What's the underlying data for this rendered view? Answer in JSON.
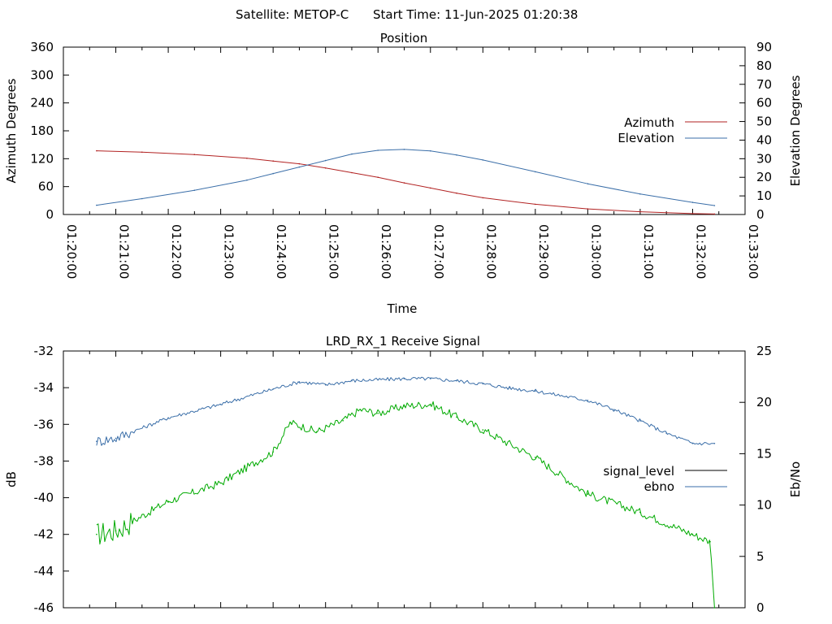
{
  "header": {
    "satellite": "Satellite: METOP-C",
    "start_time": "Start Time: 11-Jun-2025 01:20:38"
  },
  "colors": {
    "azimuth": "#b22222",
    "elevation": "#3a6ea8",
    "signal_level": "#00aa00",
    "ebno": "#3a6ea8"
  },
  "chart_data": [
    {
      "type": "line",
      "title": "Position",
      "xlabel": "Time",
      "ylabel": "Azimuth Degrees",
      "y2label": "Elevation Degrees",
      "xlim": [
        "01:20:00",
        "01:33:00"
      ],
      "ylim": [
        0,
        360
      ],
      "y2lim": [
        0,
        90
      ],
      "x_ticks": [
        "01:20:00",
        "01:21:00",
        "01:22:00",
        "01:23:00",
        "01:24:00",
        "01:25:00",
        "01:26:00",
        "01:27:00",
        "01:28:00",
        "01:29:00",
        "01:30:00",
        "01:31:00",
        "01:32:00",
        "01:33:00"
      ],
      "y_ticks": [
        "0",
        "60",
        "120",
        "180",
        "240",
        "300",
        "360"
      ],
      "y2_ticks": [
        "0",
        "10",
        "20",
        "30",
        "40",
        "50",
        "60",
        "70",
        "80",
        "90"
      ],
      "legend_position": "right",
      "series": [
        {
          "name": "Azimuth",
          "axis": "y",
          "x": [
            "01:20:38",
            "01:21:30",
            "01:22:30",
            "01:23:30",
            "01:24:00",
            "01:24:30",
            "01:25:00",
            "01:25:30",
            "01:26:00",
            "01:26:30",
            "01:27:00",
            "01:27:30",
            "01:28:00",
            "01:29:00",
            "01:30:00",
            "01:31:00",
            "01:32:00",
            "01:32:25"
          ],
          "values": [
            137,
            134,
            129,
            121,
            115,
            109,
            100,
            90,
            80,
            68,
            57,
            46,
            36,
            22,
            12,
            6,
            2,
            1
          ]
        },
        {
          "name": "Elevation",
          "axis": "y2",
          "x": [
            "01:20:38",
            "01:21:30",
            "01:22:30",
            "01:23:30",
            "01:24:00",
            "01:24:30",
            "01:25:00",
            "01:25:30",
            "01:26:00",
            "01:26:30",
            "01:27:00",
            "01:27:30",
            "01:28:00",
            "01:29:00",
            "01:30:00",
            "01:31:00",
            "01:32:00",
            "01:32:25"
          ],
          "values": [
            5,
            8.5,
            13,
            18.5,
            22,
            25.5,
            29,
            32.5,
            34.5,
            35,
            34.2,
            32,
            29.3,
            23,
            16.5,
            11,
            6.5,
            4.8
          ]
        }
      ]
    },
    {
      "type": "line",
      "title": "LRD_RX_1 Receive Signal",
      "ylabel": "dB",
      "y2label": "Eb/No",
      "ylim": [
        -46,
        -32
      ],
      "y2lim": [
        0,
        25
      ],
      "y_ticks": [
        "-32",
        "-34",
        "-36",
        "-38",
        "-40",
        "-42",
        "-44",
        "-46"
      ],
      "y2_ticks": [
        "0",
        "5",
        "10",
        "15",
        "20",
        "25"
      ],
      "legend_position": "right",
      "series": [
        {
          "name": "signal_level",
          "axis": "y",
          "x": [
            "01:20:38",
            "01:21:00",
            "01:22:00",
            "01:23:00",
            "01:24:00",
            "01:24:20",
            "01:24:50",
            "01:25:20",
            "01:25:40",
            "01:26:00",
            "01:26:30",
            "01:27:00",
            "01:27:30",
            "01:28:00",
            "01:29:00",
            "01:30:00",
            "01:31:00",
            "01:32:00",
            "01:32:20",
            "01:32:25"
          ],
          "values": [
            -42,
            -41.8,
            -40.2,
            -39.2,
            -37.5,
            -35.9,
            -36.4,
            -35.8,
            -35.2,
            -35.4,
            -35,
            -34.9,
            -35.6,
            -36.3,
            -37.8,
            -39.8,
            -40.8,
            -42,
            -42.4,
            -46
          ]
        },
        {
          "name": "ebno",
          "axis": "y2",
          "x": [
            "01:20:38",
            "01:21:00",
            "01:22:00",
            "01:23:00",
            "01:24:00",
            "01:24:30",
            "01:25:00",
            "01:25:30",
            "01:26:00",
            "01:26:30",
            "01:27:00",
            "01:27:30",
            "01:28:00",
            "01:28:30",
            "01:29:00",
            "01:30:00",
            "01:30:30",
            "01:31:00",
            "01:31:30",
            "01:32:00",
            "01:32:25"
          ],
          "values": [
            16.2,
            16.5,
            18.5,
            19.8,
            21.3,
            22,
            21.7,
            22.1,
            22.2,
            22.3,
            22.3,
            22.1,
            21.8,
            21.4,
            21.1,
            20.2,
            19.3,
            18.2,
            17,
            16,
            16
          ]
        }
      ]
    }
  ]
}
